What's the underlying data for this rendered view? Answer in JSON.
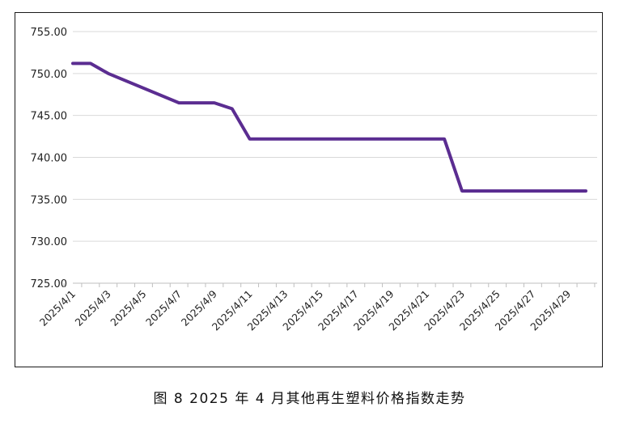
{
  "caption": "图 8  2025 年 4 月其他再生塑料价格指数走势",
  "chart_data": {
    "type": "line",
    "title": "",
    "xlabel": "",
    "ylabel": "",
    "ylim": [
      725,
      755
    ],
    "y_ticks": [
      "725.00",
      "730.00",
      "735.00",
      "740.00",
      "745.00",
      "750.00",
      "755.00"
    ],
    "x_tick_labels": [
      "2025/4/1",
      "2025/4/3",
      "2025/4/5",
      "2025/4/7",
      "2025/4/9",
      "2025/4/11",
      "2025/4/13",
      "2025/4/15",
      "2025/4/17",
      "2025/4/19",
      "2025/4/21",
      "2025/4/23",
      "2025/4/25",
      "2025/4/27",
      "2025/4/29"
    ],
    "grid": true,
    "line_color": "#5b2d91",
    "series": [
      {
        "x": [
          "2025/4/1",
          "2025/4/2",
          "2025/4/3",
          "2025/4/7",
          "2025/4/9",
          "2025/4/10",
          "2025/4/11",
          "2025/4/22",
          "2025/4/23",
          "2025/4/30"
        ],
        "values": [
          751.2,
          751.2,
          750.0,
          746.5,
          746.5,
          745.8,
          742.2,
          742.2,
          736.0,
          736.0
        ]
      }
    ]
  }
}
